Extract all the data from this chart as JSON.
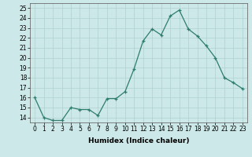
{
  "x": [
    0,
    1,
    2,
    3,
    4,
    5,
    6,
    7,
    8,
    9,
    10,
    11,
    12,
    13,
    14,
    15,
    16,
    17,
    18,
    19,
    20,
    21,
    22,
    23
  ],
  "y": [
    16,
    14,
    13.7,
    13.7,
    15,
    14.8,
    14.8,
    14.2,
    15.9,
    15.9,
    16.6,
    18.9,
    21.7,
    22.9,
    22.3,
    24.2,
    24.8,
    22.9,
    22.2,
    21.2,
    20.0,
    18.0,
    17.5,
    16.9
  ],
  "line_color": "#2e7d6e",
  "marker": "+",
  "bg_color": "#cce8e8",
  "grid_color": "#b0d0d0",
  "xlabel": "Humidex (Indice chaleur)",
  "xlim": [
    -0.5,
    23.5
  ],
  "ylim": [
    13.5,
    25.5
  ],
  "yticks": [
    14,
    15,
    16,
    17,
    18,
    19,
    20,
    21,
    22,
    23,
    24,
    25
  ],
  "xticks": [
    0,
    1,
    2,
    3,
    4,
    5,
    6,
    7,
    8,
    9,
    10,
    11,
    12,
    13,
    14,
    15,
    16,
    17,
    18,
    19,
    20,
    21,
    22,
    23
  ],
  "xtick_labels": [
    "0",
    "1",
    "2",
    "3",
    "4",
    "5",
    "6",
    "7",
    "8",
    "9",
    "10",
    "11",
    "12",
    "13",
    "14",
    "15",
    "16",
    "17",
    "18",
    "19",
    "20",
    "21",
    "22",
    "23"
  ],
  "xlabel_fontsize": 6.5,
  "tick_fontsize": 5.5,
  "marker_size": 3,
  "line_width": 0.9
}
